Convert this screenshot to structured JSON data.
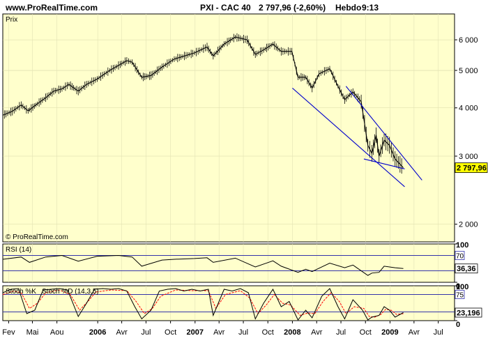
{
  "header": {
    "site": "www.ProRealTime.com",
    "instrument": "PXI - CAC 40",
    "last_value": "2 797,96 (-2,60%)",
    "period": "Hebdo",
    "time": "9:13"
  },
  "colors": {
    "panel_bg": "#ffffcc",
    "price_line": "#000000",
    "trend_line": "#0000cc",
    "rsi_line": "#000000",
    "stoch_k": "#000000",
    "stoch_d": "#ff0000",
    "level_line": "#3333aa",
    "label_bg": "#ffff00"
  },
  "chart_data": [
    {
      "type": "line",
      "panel": "price",
      "title": "Prix",
      "watermark": "© ProRealTime.com",
      "scale": "log",
      "ylim": [
        1800,
        7000
      ],
      "yticks": [
        {
          "value": 6000,
          "label": "6 000"
        },
        {
          "value": 5000,
          "label": "5 000"
        },
        {
          "value": 4000,
          "label": "4 000"
        },
        {
          "value": 3000,
          "label": "3 000"
        },
        {
          "value": 2000,
          "label": "2 000"
        }
      ],
      "xlim": [
        "2005-01-10",
        "2009-08-31"
      ],
      "x_ticks": [
        {
          "date": "2005-02-01",
          "label": "Fev",
          "bold": false
        },
        {
          "date": "2005-05-01",
          "label": "Mai",
          "bold": false
        },
        {
          "date": "2005-08-01",
          "label": "Aou",
          "bold": false
        },
        {
          "date": "2006-01-01",
          "label": "2006",
          "bold": true
        },
        {
          "date": "2006-04-01",
          "label": "Avr",
          "bold": false
        },
        {
          "date": "2006-07-01",
          "label": "Jul",
          "bold": false
        },
        {
          "date": "2006-10-01",
          "label": "Oct",
          "bold": false
        },
        {
          "date": "2007-01-01",
          "label": "2007",
          "bold": true
        },
        {
          "date": "2007-04-01",
          "label": "Avr",
          "bold": false
        },
        {
          "date": "2007-07-01",
          "label": "Jul",
          "bold": false
        },
        {
          "date": "2007-10-01",
          "label": "Oct",
          "bold": false
        },
        {
          "date": "2008-01-01",
          "label": "2008",
          "bold": true
        },
        {
          "date": "2008-04-01",
          "label": "Avr",
          "bold": false
        },
        {
          "date": "2008-07-01",
          "label": "Jul",
          "bold": false
        },
        {
          "date": "2008-10-01",
          "label": "Oct",
          "bold": false
        },
        {
          "date": "2009-01-01",
          "label": "2009",
          "bold": true
        },
        {
          "date": "2009-04-01",
          "label": "Avr",
          "bold": false
        },
        {
          "date": "2009-07-01",
          "label": "Jul",
          "bold": false
        }
      ],
      "last_value_label": "2 797,96",
      "series": [
        {
          "points": [
            [
              "2005-01-10",
              3830
            ],
            [
              "2005-02-15",
              3920
            ],
            [
              "2005-03-20",
              4070
            ],
            [
              "2005-04-15",
              3930
            ],
            [
              "2005-05-20",
              4100
            ],
            [
              "2005-06-20",
              4250
            ],
            [
              "2005-07-20",
              4420
            ],
            [
              "2005-08-20",
              4480
            ],
            [
              "2005-09-15",
              4600
            ],
            [
              "2005-10-20",
              4420
            ],
            [
              "2005-11-20",
              4600
            ],
            [
              "2005-12-30",
              4750
            ],
            [
              "2006-02-15",
              5000
            ],
            [
              "2006-03-20",
              5150
            ],
            [
              "2006-04-20",
              5300
            ],
            [
              "2006-05-10",
              5250
            ],
            [
              "2006-06-15",
              4800
            ],
            [
              "2006-07-20",
              4850
            ],
            [
              "2006-08-30",
              5100
            ],
            [
              "2006-10-15",
              5350
            ],
            [
              "2006-12-30",
              5550
            ],
            [
              "2007-02-15",
              5750
            ],
            [
              "2007-03-10",
              5450
            ],
            [
              "2007-04-20",
              5850
            ],
            [
              "2007-06-01",
              6100
            ],
            [
              "2007-07-15",
              6000
            ],
            [
              "2007-08-15",
              5500
            ],
            [
              "2007-09-15",
              5650
            ],
            [
              "2007-10-20",
              5850
            ],
            [
              "2007-11-20",
              5600
            ],
            [
              "2007-12-30",
              5600
            ],
            [
              "2008-01-22",
              4800
            ],
            [
              "2008-02-20",
              4800
            ],
            [
              "2008-03-15",
              4500
            ],
            [
              "2008-04-10",
              4900
            ],
            [
              "2008-05-20",
              5050
            ],
            [
              "2008-06-20",
              4550
            ],
            [
              "2008-07-15",
              4200
            ],
            [
              "2008-08-15",
              4400
            ],
            [
              "2008-09-15",
              4150
            ],
            [
              "2008-10-10",
              3200
            ],
            [
              "2008-10-25",
              3050
            ],
            [
              "2008-11-10",
              3400
            ],
            [
              "2008-11-21",
              3000
            ],
            [
              "2008-12-10",
              3300
            ],
            [
              "2008-12-30",
              3200
            ],
            [
              "2009-01-20",
              2950
            ],
            [
              "2009-02-20",
              2800
            ]
          ]
        }
      ],
      "annotations": [
        {
          "kind": "trendline",
          "from": [
            "2008-01-01",
            4500
          ],
          "to": [
            "2009-02-25",
            2500
          ]
        },
        {
          "kind": "trendline",
          "from": [
            "2008-09-25",
            2950
          ],
          "to": [
            "2009-02-25",
            2780
          ]
        },
        {
          "kind": "trendline",
          "from": [
            "2008-07-20",
            4550
          ],
          "to": [
            "2009-05-01",
            2600
          ]
        }
      ]
    },
    {
      "type": "line",
      "panel": "rsi",
      "title": "RSI (14)",
      "ylim": [
        0,
        100
      ],
      "yticks": [
        {
          "value": 100,
          "label": "100"
        },
        {
          "value": 0,
          "label": "0"
        }
      ],
      "levels": [
        {
          "value": 70,
          "label": "70"
        },
        {
          "value": 30,
          "label": ""
        }
      ],
      "last_value_label": "36,36",
      "series": [
        {
          "name": "RSI",
          "points": [
            [
              "2005-01-10",
              60
            ],
            [
              "2005-03-20",
              66
            ],
            [
              "2005-04-20",
              52
            ],
            [
              "2005-06-20",
              66
            ],
            [
              "2005-08-20",
              70
            ],
            [
              "2005-10-20",
              55
            ],
            [
              "2005-12-30",
              68
            ],
            [
              "2006-03-20",
              70
            ],
            [
              "2006-05-10",
              66
            ],
            [
              "2006-06-15",
              42
            ],
            [
              "2006-08-30",
              58
            ],
            [
              "2006-10-15",
              60
            ],
            [
              "2006-12-30",
              62
            ],
            [
              "2007-02-15",
              64
            ],
            [
              "2007-03-10",
              52
            ],
            [
              "2007-06-01",
              63
            ],
            [
              "2007-08-15",
              40
            ],
            [
              "2007-10-20",
              56
            ],
            [
              "2007-11-20",
              42
            ],
            [
              "2008-01-22",
              26
            ],
            [
              "2008-02-20",
              34
            ],
            [
              "2008-03-15",
              28
            ],
            [
              "2008-05-20",
              50
            ],
            [
              "2008-07-15",
              38
            ],
            [
              "2008-08-15",
              45
            ],
            [
              "2008-10-10",
              18
            ],
            [
              "2008-10-25",
              24
            ],
            [
              "2008-11-21",
              26
            ],
            [
              "2008-12-10",
              42
            ],
            [
              "2009-01-20",
              38
            ],
            [
              "2009-02-20",
              36
            ]
          ]
        }
      ]
    },
    {
      "type": "line",
      "panel": "stochastic",
      "title": "Stoch %K",
      "title_d": "Stoch %D (14,3,5)",
      "ylim": [
        0,
        100
      ],
      "yticks": [
        {
          "value": 100,
          "label": "100"
        },
        {
          "value": 0,
          "label": "0"
        }
      ],
      "levels": [
        {
          "value": 75,
          "label": "75"
        },
        {
          "value": 25,
          "label": ""
        }
      ],
      "last_value_label": "23,196",
      "series": [
        {
          "name": "Stoch %K",
          "points": [
            [
              "2005-01-10",
              80
            ],
            [
              "2005-02-10",
              90
            ],
            [
              "2005-03-10",
              92
            ],
            [
              "2005-04-10",
              20
            ],
            [
              "2005-05-10",
              30
            ],
            [
              "2005-06-10",
              88
            ],
            [
              "2005-07-10",
              90
            ],
            [
              "2005-08-10",
              92
            ],
            [
              "2005-09-10",
              88
            ],
            [
              "2005-10-20",
              12
            ],
            [
              "2005-11-20",
              50
            ],
            [
              "2005-12-20",
              90
            ],
            [
              "2006-01-20",
              92
            ],
            [
              "2006-02-20",
              90
            ],
            [
              "2006-03-20",
              92
            ],
            [
              "2006-04-20",
              85
            ],
            [
              "2006-05-20",
              40
            ],
            [
              "2006-06-15",
              5
            ],
            [
              "2006-07-20",
              30
            ],
            [
              "2006-08-20",
              85
            ],
            [
              "2006-09-20",
              90
            ],
            [
              "2006-10-20",
              92
            ],
            [
              "2006-11-20",
              85
            ],
            [
              "2006-12-20",
              90
            ],
            [
              "2007-01-20",
              85
            ],
            [
              "2007-02-20",
              90
            ],
            [
              "2007-03-10",
              15
            ],
            [
              "2007-04-20",
              90
            ],
            [
              "2007-05-20",
              85
            ],
            [
              "2007-06-20",
              92
            ],
            [
              "2007-07-20",
              80
            ],
            [
              "2007-08-15",
              5
            ],
            [
              "2007-09-15",
              50
            ],
            [
              "2007-10-20",
              90
            ],
            [
              "2007-11-20",
              40
            ],
            [
              "2007-12-20",
              55
            ],
            [
              "2008-01-22",
              2
            ],
            [
              "2008-02-20",
              30
            ],
            [
              "2008-03-15",
              8
            ],
            [
              "2008-04-20",
              70
            ],
            [
              "2008-05-20",
              92
            ],
            [
              "2008-06-20",
              40
            ],
            [
              "2008-07-15",
              5
            ],
            [
              "2008-08-15",
              60
            ],
            [
              "2008-09-20",
              30
            ],
            [
              "2008-10-10",
              2
            ],
            [
              "2008-10-25",
              10
            ],
            [
              "2008-11-21",
              15
            ],
            [
              "2008-12-10",
              40
            ],
            [
              "2008-12-30",
              30
            ],
            [
              "2009-01-20",
              10
            ],
            [
              "2009-02-20",
              23
            ]
          ]
        },
        {
          "name": "Stoch %D (14,3,5)",
          "points": [
            [
              "2005-01-10",
              75
            ],
            [
              "2005-02-20",
              85
            ],
            [
              "2005-03-20",
              80
            ],
            [
              "2005-04-20",
              35
            ],
            [
              "2005-05-20",
              50
            ],
            [
              "2005-06-20",
              80
            ],
            [
              "2005-08-10",
              88
            ],
            [
              "2005-09-20",
              75
            ],
            [
              "2005-10-25",
              30
            ],
            [
              "2005-11-25",
              55
            ],
            [
              "2005-12-25",
              82
            ],
            [
              "2006-02-20",
              88
            ],
            [
              "2006-04-20",
              86
            ],
            [
              "2006-05-25",
              55
            ],
            [
              "2006-06-25",
              20
            ],
            [
              "2006-07-25",
              35
            ],
            [
              "2006-08-25",
              70
            ],
            [
              "2006-10-20",
              88
            ],
            [
              "2006-12-20",
              86
            ],
            [
              "2007-02-20",
              86
            ],
            [
              "2007-03-20",
              35
            ],
            [
              "2007-04-25",
              75
            ],
            [
              "2007-06-20",
              86
            ],
            [
              "2007-07-25",
              65
            ],
            [
              "2007-08-25",
              20
            ],
            [
              "2007-09-25",
              45
            ],
            [
              "2007-10-25",
              75
            ],
            [
              "2007-11-25",
              50
            ],
            [
              "2007-12-25",
              45
            ],
            [
              "2008-01-30",
              15
            ],
            [
              "2008-02-28",
              22
            ],
            [
              "2008-03-25",
              20
            ],
            [
              "2008-04-25",
              55
            ],
            [
              "2008-05-25",
              80
            ],
            [
              "2008-06-25",
              55
            ],
            [
              "2008-07-20",
              20
            ],
            [
              "2008-08-20",
              40
            ],
            [
              "2008-09-25",
              35
            ],
            [
              "2008-10-15",
              12
            ],
            [
              "2008-11-05",
              10
            ],
            [
              "2008-11-28",
              18
            ],
            [
              "2008-12-15",
              32
            ],
            [
              "2009-01-05",
              30
            ],
            [
              "2009-01-25",
              18
            ],
            [
              "2009-02-20",
              20
            ]
          ]
        }
      ]
    }
  ]
}
